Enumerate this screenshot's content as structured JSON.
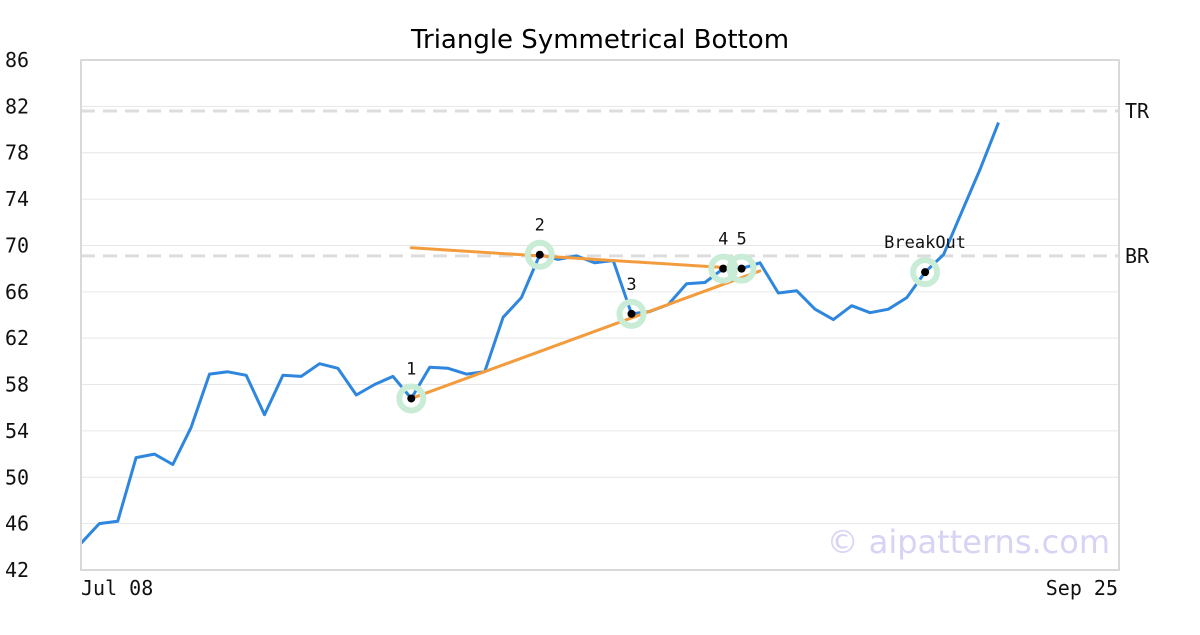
{
  "chart_data": {
    "type": "line",
    "title": "Triangle Symmetrical Bottom",
    "xlabel": "",
    "ylabel": "",
    "x_tick_labels": [
      "Jul 08",
      "Sep 25"
    ],
    "y_ticks": [
      42,
      46,
      50,
      54,
      58,
      62,
      66,
      70,
      74,
      78,
      82,
      86
    ],
    "ylim": [
      42,
      86
    ],
    "grid": "horizontal",
    "series": [
      {
        "color": "#2e86de",
        "values": [
          44.3,
          46.0,
          46.2,
          51.7,
          52.0,
          51.1,
          54.3,
          58.9,
          59.1,
          58.8,
          55.4,
          58.8,
          58.7,
          59.8,
          59.4,
          57.1,
          58.0,
          58.7,
          56.8,
          59.5,
          59.4,
          58.9,
          59.1,
          63.8,
          65.5,
          69.2,
          68.8,
          69.1,
          68.5,
          68.7,
          64.1,
          64.3,
          64.9,
          66.7,
          66.8,
          68.0,
          68.0,
          68.5,
          65.9,
          66.1,
          64.5,
          63.6,
          64.8,
          64.2,
          64.5,
          65.5,
          67.7,
          69.2,
          72.9,
          76.6,
          80.6
        ]
      }
    ],
    "reference_lines": [
      {
        "label": "TR",
        "value": 81.6
      },
      {
        "label": "BR",
        "value": 69.1
      }
    ],
    "pattern_points": [
      {
        "label": "1",
        "index": 18,
        "value": 56.8
      },
      {
        "label": "2",
        "index": 25,
        "value": 69.2
      },
      {
        "label": "3",
        "index": 30,
        "value": 64.1
      },
      {
        "label": "4",
        "index": 35,
        "value": 68.0
      },
      {
        "label": "5",
        "index": 36,
        "value": 68.0
      },
      {
        "label": "BreakOut",
        "index": 46,
        "value": 67.7
      }
    ],
    "trendlines": [
      {
        "color": "#f39c3d",
        "from": {
          "index": 18,
          "value": 69.8
        },
        "to": {
          "index": 36,
          "value": 68.0
        }
      },
      {
        "color": "#f39c3d",
        "from": {
          "index": 18,
          "value": 56.8
        },
        "to": {
          "index": 37,
          "value": 67.8
        }
      }
    ]
  },
  "watermark": "© aipatterns.com",
  "colors": {
    "line": "#2e86de",
    "trend": "#f39c3d",
    "marker_halo": "#c8ecd6",
    "reference": "#dddddd",
    "grid": "#e6e6e6",
    "frame": "#d9d9d9",
    "watermark": "#d6d3f5"
  }
}
